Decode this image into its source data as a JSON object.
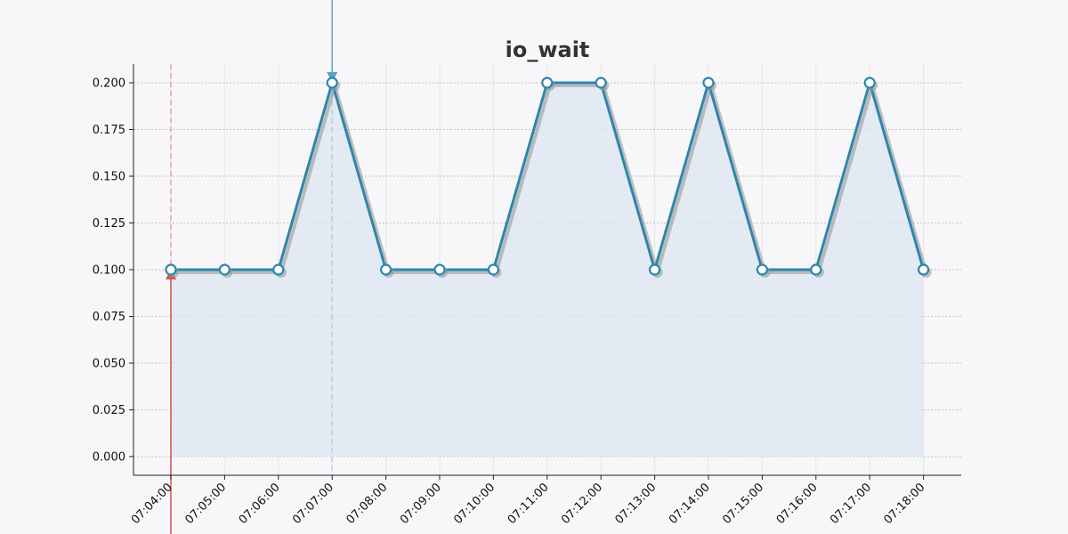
{
  "chart_data": {
    "type": "line",
    "title": "io_wait",
    "xlabel": "",
    "ylabel": "",
    "x": [
      "07:04:00",
      "07:05:00",
      "07:06:00",
      "07:07:00",
      "07:08:00",
      "07:09:00",
      "07:10:00",
      "07:11:00",
      "07:12:00",
      "07:13:00",
      "07:14:00",
      "07:15:00",
      "07:16:00",
      "07:17:00",
      "07:18:00"
    ],
    "series": [
      {
        "values": [
          0.1,
          0.1,
          0.1,
          0.2,
          0.1,
          0.1,
          0.1,
          0.2,
          0.2,
          0.1,
          0.2,
          0.1,
          0.1,
          0.2,
          0.1
        ]
      }
    ],
    "ylim": [
      -0.01,
      0.21
    ],
    "yticks": [
      "0.000",
      "0.025",
      "0.050",
      "0.075",
      "0.100",
      "0.125",
      "0.150",
      "0.175",
      "0.200"
    ],
    "area_fill": true,
    "grid": true,
    "markers": [
      {
        "kind": "vline",
        "x": "07:04:00",
        "color": "#e8a0a0",
        "style": "dashed",
        "arrow": "up-from-bottom"
      },
      {
        "kind": "vline",
        "x": "07:07:00",
        "color": "#a8d4e0",
        "style": "dashed",
        "arrow": "down-from-top"
      }
    ],
    "colors": {
      "line": "#2e86ab",
      "shadow": "#999999",
      "area": "#dce6f0",
      "grid": "#b0b0b0"
    }
  }
}
